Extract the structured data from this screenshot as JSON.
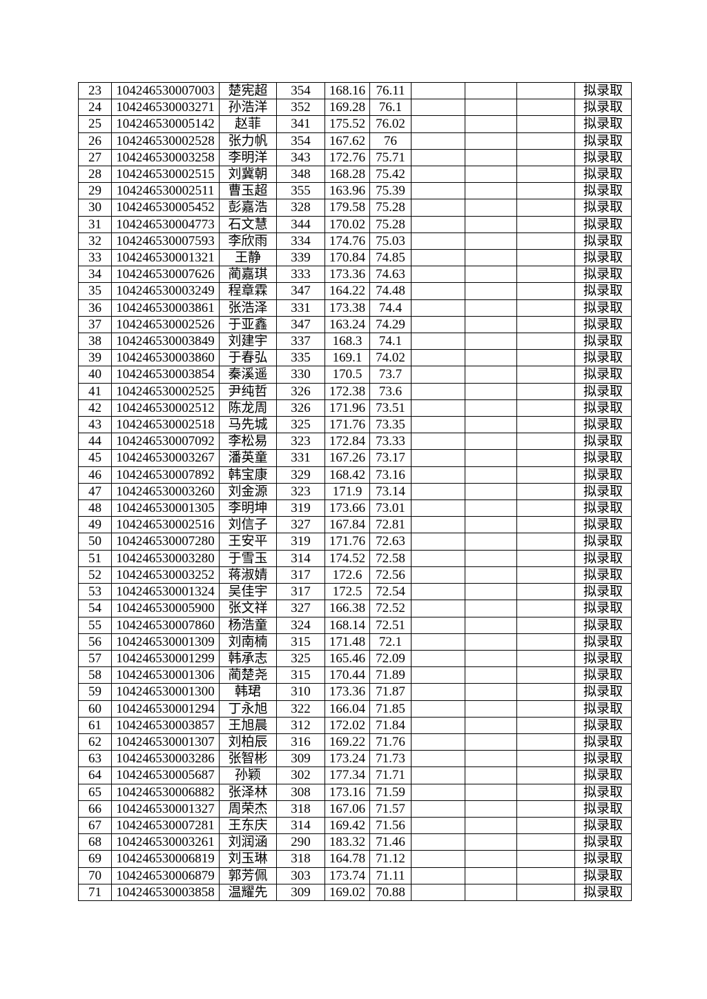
{
  "page": {
    "background_color": "#ffffff",
    "text_color": "#000000",
    "border_color": "#000000"
  },
  "table": {
    "visible_header": false,
    "status_value_all_rows": "拟录取",
    "rows": [
      [
        "23",
        "104246530007003",
        "楚宪超",
        "354",
        "168.16",
        "76.11",
        "",
        "",
        "",
        "拟录取"
      ],
      [
        "24",
        "104246530003271",
        "孙浩洋",
        "352",
        "169.28",
        "76.1",
        "",
        "",
        "",
        "拟录取"
      ],
      [
        "25",
        "104246530005142",
        "赵菲",
        "341",
        "175.52",
        "76.02",
        "",
        "",
        "",
        "拟录取"
      ],
      [
        "26",
        "104246530002528",
        "张力帆",
        "354",
        "167.62",
        "76",
        "",
        "",
        "",
        "拟录取"
      ],
      [
        "27",
        "104246530003258",
        "李明洋",
        "343",
        "172.76",
        "75.71",
        "",
        "",
        "",
        "拟录取"
      ],
      [
        "28",
        "104246530002515",
        "刘冀朝",
        "348",
        "168.28",
        "75.42",
        "",
        "",
        "",
        "拟录取"
      ],
      [
        "29",
        "104246530002511",
        "曹玉超",
        "355",
        "163.96",
        "75.39",
        "",
        "",
        "",
        "拟录取"
      ],
      [
        "30",
        "104246530005452",
        "彭嘉浩",
        "328",
        "179.58",
        "75.28",
        "",
        "",
        "",
        "拟录取"
      ],
      [
        "31",
        "104246530004773",
        "石文慧",
        "344",
        "170.02",
        "75.28",
        "",
        "",
        "",
        "拟录取"
      ],
      [
        "32",
        "104246530007593",
        "李欣雨",
        "334",
        "174.76",
        "75.03",
        "",
        "",
        "",
        "拟录取"
      ],
      [
        "33",
        "104246530001321",
        "王静",
        "339",
        "170.84",
        "74.85",
        "",
        "",
        "",
        "拟录取"
      ],
      [
        "34",
        "104246530007626",
        "蔺嘉琪",
        "333",
        "173.36",
        "74.63",
        "",
        "",
        "",
        "拟录取"
      ],
      [
        "35",
        "104246530003249",
        "程章霖",
        "347",
        "164.22",
        "74.48",
        "",
        "",
        "",
        "拟录取"
      ],
      [
        "36",
        "104246530003861",
        "张浩泽",
        "331",
        "173.38",
        "74.4",
        "",
        "",
        "",
        "拟录取"
      ],
      [
        "37",
        "104246530002526",
        "于亚鑫",
        "347",
        "163.24",
        "74.29",
        "",
        "",
        "",
        "拟录取"
      ],
      [
        "38",
        "104246530003849",
        "刘建宇",
        "337",
        "168.3",
        "74.1",
        "",
        "",
        "",
        "拟录取"
      ],
      [
        "39",
        "104246530003860",
        "于春弘",
        "335",
        "169.1",
        "74.02",
        "",
        "",
        "",
        "拟录取"
      ],
      [
        "40",
        "104246530003854",
        "秦溪遥",
        "330",
        "170.5",
        "73.7",
        "",
        "",
        "",
        "拟录取"
      ],
      [
        "41",
        "104246530002525",
        "尹纯哲",
        "326",
        "172.38",
        "73.6",
        "",
        "",
        "",
        "拟录取"
      ],
      [
        "42",
        "104246530002512",
        "陈龙周",
        "326",
        "171.96",
        "73.51",
        "",
        "",
        "",
        "拟录取"
      ],
      [
        "43",
        "104246530002518",
        "马先城",
        "325",
        "171.76",
        "73.35",
        "",
        "",
        "",
        "拟录取"
      ],
      [
        "44",
        "104246530007092",
        "李松易",
        "323",
        "172.84",
        "73.33",
        "",
        "",
        "",
        "拟录取"
      ],
      [
        "45",
        "104246530003267",
        "潘英童",
        "331",
        "167.26",
        "73.17",
        "",
        "",
        "",
        "拟录取"
      ],
      [
        "46",
        "104246530007892",
        "韩宝康",
        "329",
        "168.42",
        "73.16",
        "",
        "",
        "",
        "拟录取"
      ],
      [
        "47",
        "104246530003260",
        "刘金源",
        "323",
        "171.9",
        "73.14",
        "",
        "",
        "",
        "拟录取"
      ],
      [
        "48",
        "104246530001305",
        "李明坤",
        "319",
        "173.66",
        "73.01",
        "",
        "",
        "",
        "拟录取"
      ],
      [
        "49",
        "104246530002516",
        "刘信子",
        "327",
        "167.84",
        "72.81",
        "",
        "",
        "",
        "拟录取"
      ],
      [
        "50",
        "104246530007280",
        "王安平",
        "319",
        "171.76",
        "72.63",
        "",
        "",
        "",
        "拟录取"
      ],
      [
        "51",
        "104246530003280",
        "于雪玉",
        "314",
        "174.52",
        "72.58",
        "",
        "",
        "",
        "拟录取"
      ],
      [
        "52",
        "104246530003252",
        "蒋淑婧",
        "317",
        "172.6",
        "72.56",
        "",
        "",
        "",
        "拟录取"
      ],
      [
        "53",
        "104246530001324",
        "吴佳宇",
        "317",
        "172.5",
        "72.54",
        "",
        "",
        "",
        "拟录取"
      ],
      [
        "54",
        "104246530005900",
        "张文祥",
        "327",
        "166.38",
        "72.52",
        "",
        "",
        "",
        "拟录取"
      ],
      [
        "55",
        "104246530007860",
        "杨浩童",
        "324",
        "168.14",
        "72.51",
        "",
        "",
        "",
        "拟录取"
      ],
      [
        "56",
        "104246530001309",
        "刘南楠",
        "315",
        "171.48",
        "72.1",
        "",
        "",
        "",
        "拟录取"
      ],
      [
        "57",
        "104246530001299",
        "韩承志",
        "325",
        "165.46",
        "72.09",
        "",
        "",
        "",
        "拟录取"
      ],
      [
        "58",
        "104246530001306",
        "蔺楚尧",
        "315",
        "170.44",
        "71.89",
        "",
        "",
        "",
        "拟录取"
      ],
      [
        "59",
        "104246530001300",
        "韩珺",
        "310",
        "173.36",
        "71.87",
        "",
        "",
        "",
        "拟录取"
      ],
      [
        "60",
        "104246530001294",
        "丁永旭",
        "322",
        "166.04",
        "71.85",
        "",
        "",
        "",
        "拟录取"
      ],
      [
        "61",
        "104246530003857",
        "王旭晨",
        "312",
        "172.02",
        "71.84",
        "",
        "",
        "",
        "拟录取"
      ],
      [
        "62",
        "104246530001307",
        "刘柏辰",
        "316",
        "169.22",
        "71.76",
        "",
        "",
        "",
        "拟录取"
      ],
      [
        "63",
        "104246530003286",
        "张智彬",
        "309",
        "173.24",
        "71.73",
        "",
        "",
        "",
        "拟录取"
      ],
      [
        "64",
        "104246530005687",
        "孙颖",
        "302",
        "177.34",
        "71.71",
        "",
        "",
        "",
        "拟录取"
      ],
      [
        "65",
        "104246530006882",
        "张泽林",
        "308",
        "173.16",
        "71.59",
        "",
        "",
        "",
        "拟录取"
      ],
      [
        "66",
        "104246530001327",
        "周荣杰",
        "318",
        "167.06",
        "71.57",
        "",
        "",
        "",
        "拟录取"
      ],
      [
        "67",
        "104246530007281",
        "王东庆",
        "314",
        "169.42",
        "71.56",
        "",
        "",
        "",
        "拟录取"
      ],
      [
        "68",
        "104246530003261",
        "刘润涵",
        "290",
        "183.32",
        "71.46",
        "",
        "",
        "",
        "拟录取"
      ],
      [
        "69",
        "104246530006819",
        "刘玉琳",
        "318",
        "164.78",
        "71.12",
        "",
        "",
        "",
        "拟录取"
      ],
      [
        "70",
        "104246530006879",
        "郭芳佩",
        "303",
        "173.74",
        "71.11",
        "",
        "",
        "",
        "拟录取"
      ],
      [
        "71",
        "104246530003858",
        "温耀先",
        "309",
        "169.02",
        "70.88",
        "",
        "",
        "",
        "拟录取"
      ]
    ]
  }
}
